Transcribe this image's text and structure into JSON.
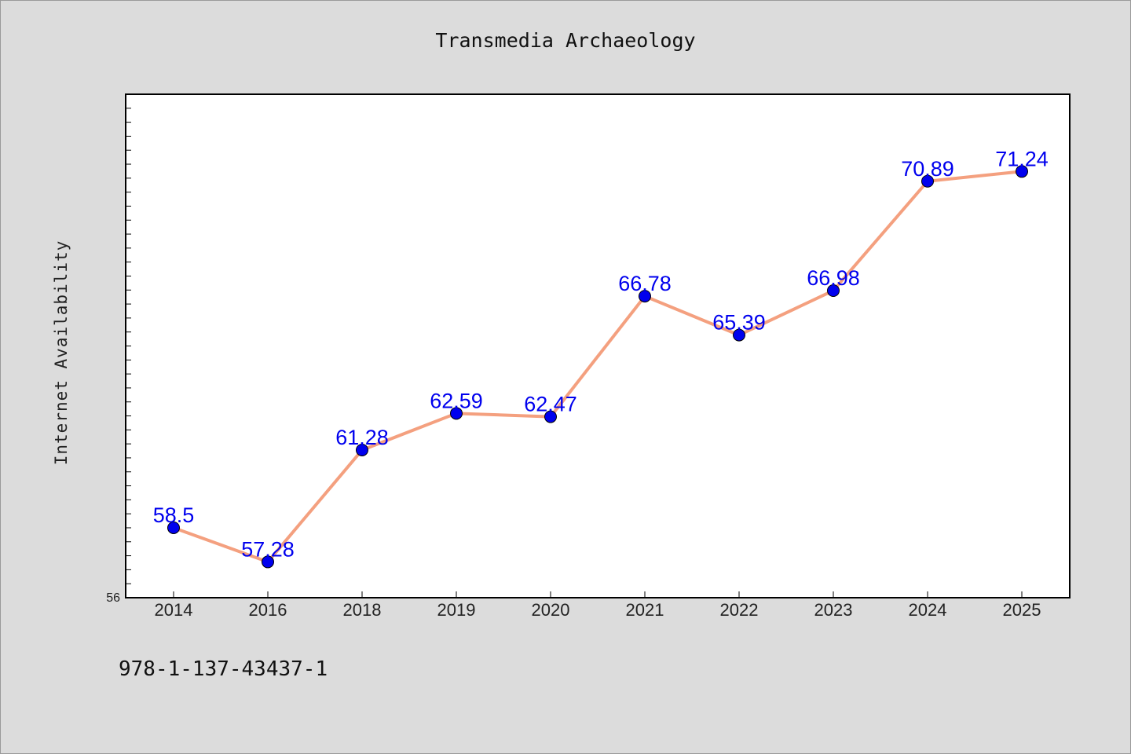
{
  "chart_data": {
    "type": "line",
    "title": "Transmedia Archaeology",
    "ylabel": "Internet Availability",
    "xlabel": "",
    "categories": [
      "2014",
      "2016",
      "2018",
      "2019",
      "2020",
      "2021",
      "2022",
      "2023",
      "2024",
      "2025"
    ],
    "series": [
      {
        "values": [
          58.5,
          57.28,
          61.28,
          62.59,
          62.47,
          66.78,
          65.39,
          66.98,
          70.89,
          71.24
        ],
        "labels": [
          "58.5",
          "57.28",
          "61.28",
          "62.59",
          "62.47",
          "66.78",
          "65.39",
          "66.98",
          "70.89",
          "71.24"
        ],
        "line_color": "#f4a07f",
        "marker_color": "#0000ee"
      }
    ],
    "ylim": [
      56,
      74
    ],
    "ytick_labels": [
      "56"
    ],
    "grid": false,
    "legend": "none"
  },
  "footer": {
    "code": "978-1-137-43437-1"
  }
}
